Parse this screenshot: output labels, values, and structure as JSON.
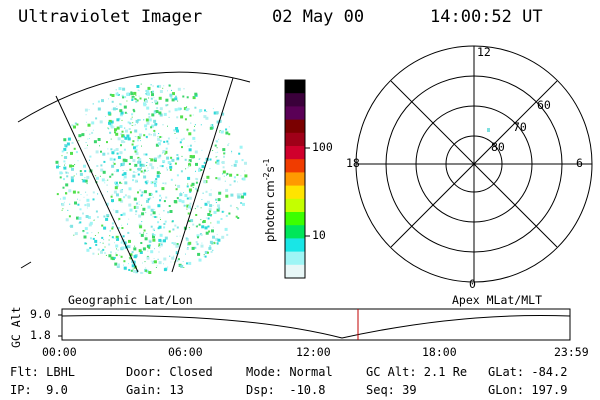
{
  "header": {
    "instrument": "Ultraviolet Imager",
    "date": "02 May 00",
    "time": "14:00:52 UT"
  },
  "colorbar": {
    "unit_label": "photon cm⁻²s⁻¹",
    "tick_100": "100",
    "tick_10": "10",
    "colors": [
      "#000000",
      "#3a003a",
      "#5a0056",
      "#7a0000",
      "#a00018",
      "#d0002c",
      "#f03c00",
      "#ff9a00",
      "#ffe400",
      "#c4ff00",
      "#3cff00",
      "#00e65a",
      "#19e6e6",
      "#9ff5f5",
      "#e8f7f7"
    ]
  },
  "polar_plot": {
    "mlt_labels": {
      "top": "12",
      "left": "18",
      "right": "6",
      "bottom": "0"
    },
    "lat_labels": [
      "60",
      "70",
      "80"
    ]
  },
  "map_labels": {
    "geographic": "Geographic Lat/Lon",
    "apex": "Apex MLat/MLT"
  },
  "timeline": {
    "axis_label": "GC Alt",
    "y_ticks": [
      "9.0",
      "1.8"
    ],
    "x_ticks": [
      "00:00",
      "06:00",
      "12:00",
      "18:00",
      "23:59"
    ],
    "marker_color": "#c00000"
  },
  "footer": {
    "flt": "Flt: LBHL",
    "ip": "IP:  9.0",
    "door": "Door: Closed",
    "gain": "Gain: 13",
    "mode": "Mode: Normal",
    "dsp": "Dsp:  -10.8",
    "gc_alt": "GC Alt: 2.1 Re",
    "seq": "Seq: 39",
    "glat": "GLat: -84.2",
    "glon": "GLon: 197.9"
  }
}
